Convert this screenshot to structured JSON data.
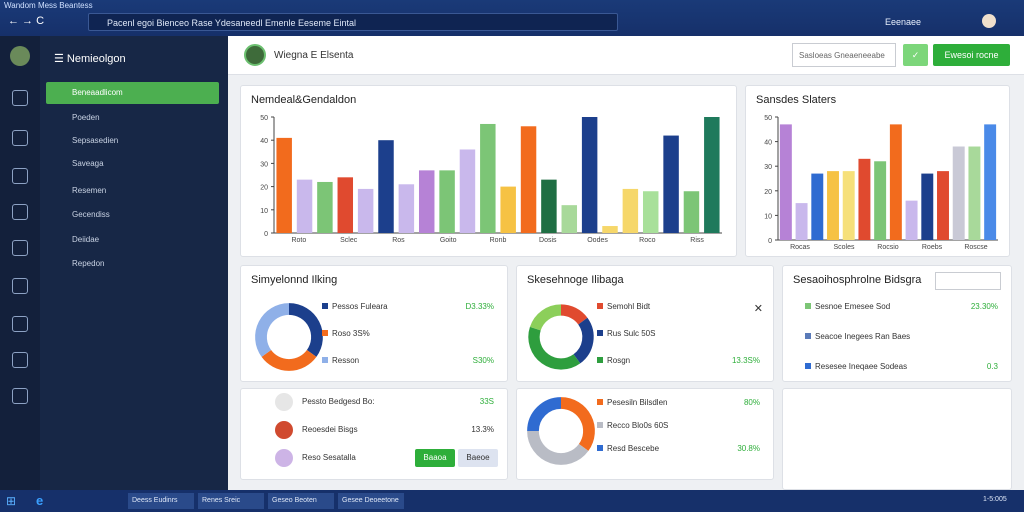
{
  "browser": {
    "tab": "Wandom Mess Beantess",
    "url": "Pacenl egoi Bienceo Rase Ydesaneedl Emenle Eeseme Eintal",
    "status": "Eeenaee"
  },
  "sidebar": {
    "title": "Nemieolgon",
    "items": [
      "Beneaadlicom",
      "Poeden",
      "Sepsasedien",
      "Saveaga",
      "Resemen",
      "Gecendiss",
      "Deiidae",
      "Repedon"
    ]
  },
  "header": {
    "title": "Wiegna E Elsenta",
    "select": "Sasloeas Gneaeneeabe",
    "button": "Ewesoi rocne"
  },
  "bar_chart_1": {
    "type": "bar",
    "title": "Nemdeal&Gendaldon",
    "ylim": [
      0,
      50
    ],
    "yticks": [
      0,
      10,
      20,
      30,
      40,
      50
    ],
    "x_labels": [
      "Roto",
      "Sclec",
      "Ros",
      "Goito",
      "Ronb",
      "Dosis",
      "Oodes",
      "Roco",
      "Riss"
    ],
    "colors": [
      "#f26b1d",
      "#c9b8ec",
      "#7cc576",
      "#e04a2f",
      "#c9b8ec",
      "#1c3f8c",
      "#c9b8ec",
      "#b682d6",
      "#7cc576",
      "#c9b8ec",
      "#7cc576",
      "#f6c244",
      "#f26b1d",
      "#1f6e43",
      "#a8d99a",
      "#1c3f8c",
      "#f6d76a",
      "#f6d76a",
      "#a8e09a",
      "#1c3f8c",
      "#7cc576",
      "#1f7a5c"
    ],
    "values": [
      41,
      23,
      22,
      24,
      19,
      40,
      21,
      27,
      27,
      36,
      47,
      20,
      46,
      23,
      12,
      50,
      3,
      19,
      18,
      42,
      18,
      50
    ]
  },
  "bar_chart_2": {
    "type": "bar",
    "title": "Sansdes Slaters",
    "ylim": [
      0,
      50
    ],
    "yticks": [
      0,
      10,
      20,
      30,
      40,
      50
    ],
    "x_labels": [
      "Rocas",
      "Scoles",
      "Rocsio",
      "Roebs",
      "Roscse"
    ],
    "colors": [
      "#b682d6",
      "#c9b8ec",
      "#2f6bd1",
      "#f6c244",
      "#f6e07a",
      "#e04a2f",
      "#7cc576",
      "#f26b1d",
      "#c9b8ec",
      "#1c3f8c",
      "#e04a2f",
      "#c9c9d6",
      "#a8d99a",
      "#4a8ae8"
    ],
    "values": [
      47,
      15,
      27,
      28,
      28,
      33,
      32,
      47,
      16,
      27,
      28,
      38,
      38,
      47
    ]
  },
  "donut_1": {
    "type": "pie",
    "title": "Simyelonnd Ilking",
    "colors": [
      "#1c3f8c",
      "#f26b1d",
      "#8fb0e8"
    ],
    "values": [
      35,
      30,
      35
    ],
    "rows": [
      [
        "Pessos Fuleara",
        "D3.33%"
      ],
      [
        "Roso 3S%",
        ""
      ],
      [
        "Resson",
        "S30%"
      ]
    ]
  },
  "donut_2": {
    "type": "pie",
    "title": "Skesehnoge Ilibaga",
    "colors": [
      "#e04a2f",
      "#1c3f8c",
      "#2e9e3e",
      "#8ccf5a"
    ],
    "values": [
      15,
      25,
      40,
      20
    ],
    "rows": [
      [
        "Semohl Bidt",
        ""
      ],
      [
        "Rus Sulc 50S",
        ""
      ],
      [
        "Rosgn",
        "13.3S%"
      ]
    ]
  },
  "list_1": {
    "title": "Sesaoihosphrolne Bidsgra",
    "rows": [
      [
        "Sesnoe Emesee Sod",
        "23.30%"
      ],
      [
        "Seacoe Inegees Ran Baes",
        ""
      ],
      [
        "Resesee Ineqaee Sodeas",
        "0.3"
      ]
    ]
  },
  "list_2": {
    "rows": [
      [
        "Pessto Bedgesd Bo:",
        "33S"
      ],
      [
        "Reoesdei Bisgs",
        "13.3%"
      ],
      [
        "Reso Sesatalla",
        ""
      ]
    ],
    "buttons": [
      "Baaoa",
      "Baeoe"
    ]
  },
  "donut_3": {
    "type": "pie",
    "colors": [
      "#f26b1d",
      "#b9bcc5",
      "#2f6bd1"
    ],
    "values": [
      35,
      40,
      25
    ],
    "rows": [
      [
        "Pesesiln Bilsdlen",
        "80%"
      ],
      [
        "Recco Blo0s 60S",
        ""
      ],
      [
        "Resd Bescebe",
        "30.8%"
      ]
    ]
  },
  "taskbar": [
    "Deess Eudinrs",
    "Renes Sreic",
    "Geseo Beoten",
    "Gesee Deoeetone"
  ],
  "clock": "1-5:005"
}
